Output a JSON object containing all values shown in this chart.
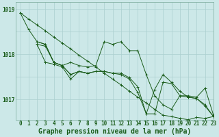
{
  "bg_color": "#cce8e8",
  "line_color": "#1a5c1a",
  "grid_color": "#aacfcf",
  "xlabel": "Graphe pression niveau de la mer (hPa)",
  "xlabel_fontsize": 7,
  "tick_fontsize": 5.5,
  "xlim": [
    -0.5,
    23
  ],
  "ylim": [
    1016.55,
    1019.15
  ],
  "yticks": [
    1017,
    1018,
    1019
  ],
  "xticks": [
    0,
    1,
    2,
    3,
    4,
    5,
    6,
    7,
    8,
    9,
    10,
    11,
    12,
    13,
    14,
    15,
    16,
    17,
    18,
    19,
    20,
    21,
    22,
    23
  ],
  "series": [
    {
      "x": [
        0,
        1,
        2,
        3,
        4,
        5,
        6,
        7,
        8,
        9,
        10,
        11,
        12,
        13,
        14,
        15,
        16,
        17,
        18,
        19,
        20,
        21,
        22,
        23
      ],
      "y": [
        1018.92,
        1018.78,
        1018.65,
        1018.52,
        1018.38,
        1018.25,
        1018.12,
        1017.98,
        1017.85,
        1017.72,
        1017.58,
        1017.45,
        1017.32,
        1017.18,
        1017.05,
        1016.92,
        1016.78,
        1016.65,
        1016.62,
        1016.58,
        1016.55,
        1016.6,
        1016.58,
        1016.62
      ]
    },
    {
      "x": [
        0,
        1,
        2,
        3,
        4,
        5,
        6,
        7,
        8,
        9,
        10,
        11,
        12,
        13,
        14,
        15,
        16,
        17,
        18,
        19,
        20,
        21,
        22,
        23
      ],
      "y": [
        1018.92,
        1018.55,
        1018.28,
        1018.22,
        1017.82,
        1017.75,
        1017.82,
        1017.75,
        1017.72,
        1017.75,
        1018.28,
        1018.22,
        1018.28,
        1018.08,
        1018.08,
        1017.55,
        1017.08,
        1016.88,
        1016.78,
        1017.08,
        1017.08,
        1017.05,
        1017.25,
        1016.65
      ]
    },
    {
      "x": [
        2,
        3,
        4,
        5,
        6,
        7,
        8,
        9,
        10,
        11,
        12,
        13,
        14,
        15,
        16,
        17,
        18,
        19,
        20,
        21,
        22,
        23
      ],
      "y": [
        1018.28,
        1018.22,
        1017.82,
        1017.75,
        1017.55,
        1017.62,
        1017.58,
        1017.62,
        1017.62,
        1017.58,
        1017.58,
        1017.48,
        1017.28,
        1016.68,
        1016.68,
        1017.38,
        1017.35,
        1017.08,
        1017.05,
        1017.02,
        1016.88,
        1016.62
      ]
    },
    {
      "x": [
        2,
        3,
        4,
        5,
        6,
        7,
        8,
        9,
        10,
        11,
        12,
        13,
        14,
        15,
        16,
        17,
        18,
        19,
        20,
        21,
        22,
        23
      ],
      "y": [
        1018.22,
        1018.18,
        1017.82,
        1017.75,
        1017.55,
        1017.62,
        1017.58,
        1017.62,
        1017.62,
        1017.58,
        1017.55,
        1017.45,
        1017.15,
        1016.68,
        1017.22,
        1017.55,
        1017.38,
        1017.18,
        1017.05,
        1017.02,
        1016.85,
        1016.62
      ]
    },
    {
      "x": [
        2,
        3,
        4,
        5,
        6,
        7,
        8
      ],
      "y": [
        1018.22,
        1017.82,
        1017.78,
        1017.72,
        1017.45,
        1017.62,
        1017.58
      ]
    }
  ]
}
